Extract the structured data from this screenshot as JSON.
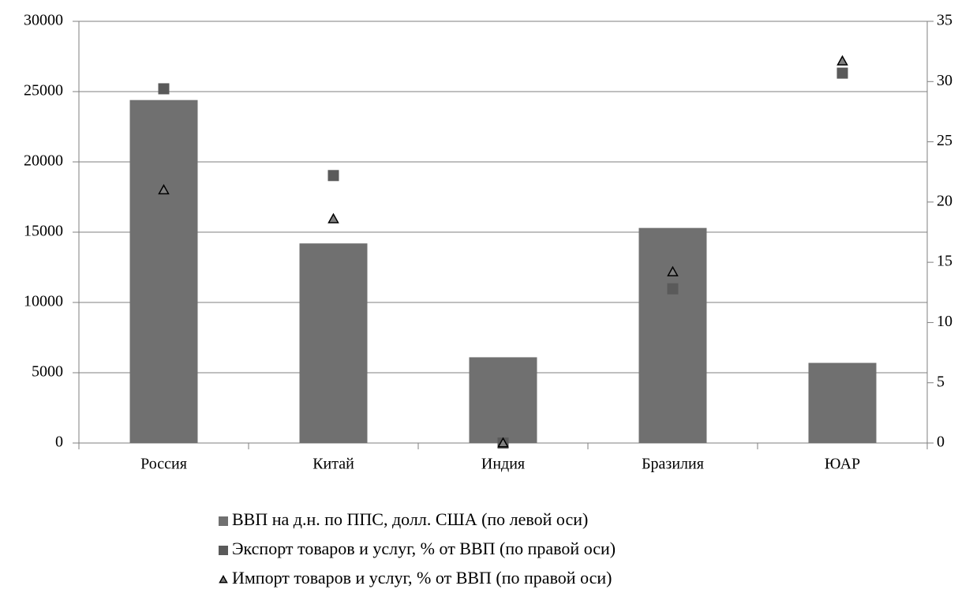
{
  "chart_data": {
    "type": "bar",
    "categories": [
      "Россия",
      "Китай",
      "Индия",
      "Бразилия",
      "ЮАР"
    ],
    "series": [
      {
        "name": "ВВП на д.н. по ППС, долл. США (по левой оси)",
        "type": "bar",
        "color": "#707070",
        "values": [
          24400,
          14200,
          6100,
          15300,
          5700
        ]
      },
      {
        "name": "Экспорт товаров и услуг, % от ВВП (по правой оси)",
        "type": "scatter",
        "marker": "square",
        "axis": "y2",
        "color": "#5a5a5a",
        "values": [
          29.4,
          22.2,
          0,
          12.8,
          30.7
        ]
      },
      {
        "name": "Импорт товаров и услуг, % от ВВП (по правой оси)",
        "type": "scatter",
        "marker": "triangle",
        "axis": "y2",
        "color": "#808080",
        "values": [
          21.0,
          18.6,
          0,
          14.2,
          31.7
        ]
      }
    ],
    "ylim": [
      0,
      30000
    ],
    "yticks": [
      0,
      5000,
      10000,
      15000,
      20000,
      25000,
      30000
    ],
    "y2lim": [
      0,
      35
    ],
    "y2ticks": [
      0,
      5,
      10,
      15,
      20,
      25,
      30,
      35
    ],
    "grid": true,
    "legend": "bottom"
  }
}
